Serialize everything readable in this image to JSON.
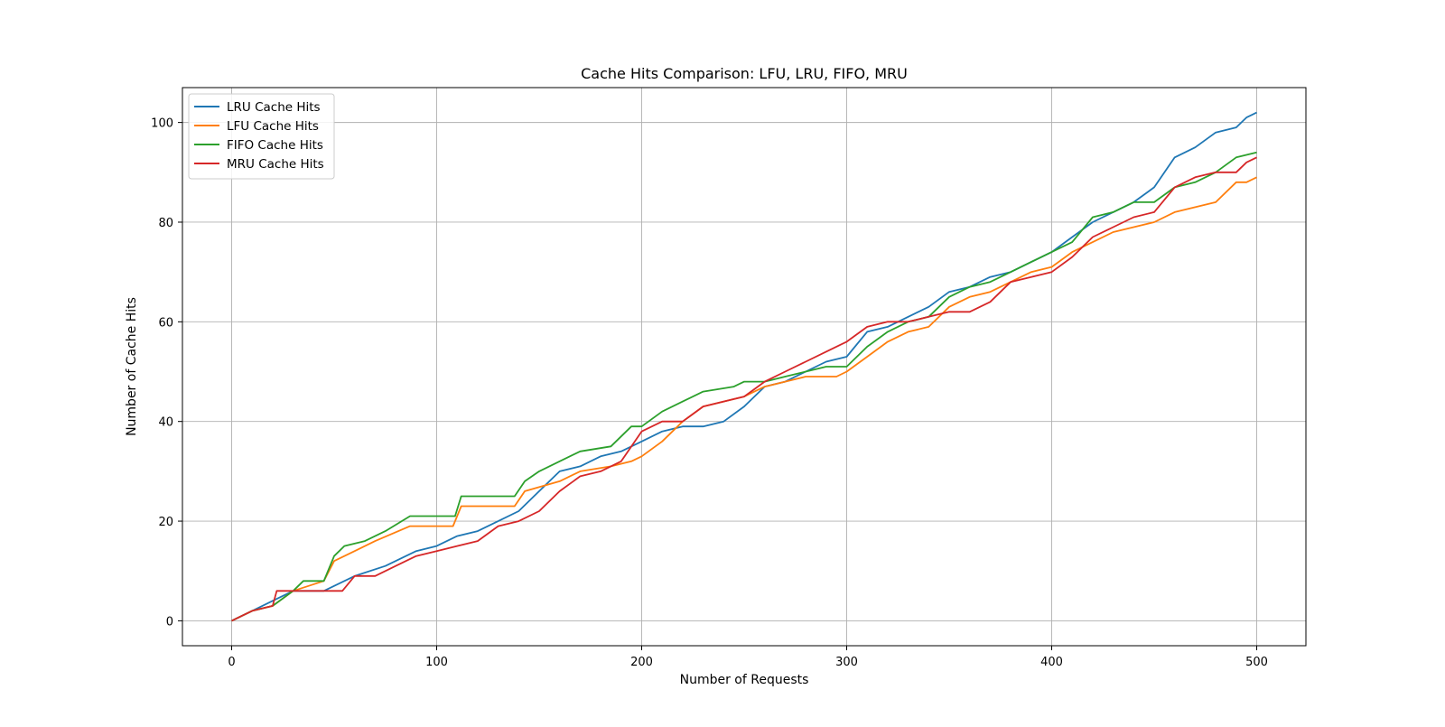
{
  "chart_data": {
    "type": "line",
    "title": "Cache Hits Comparison: LFU, LRU, FIFO, MRU",
    "xlabel": "Number of Requests",
    "ylabel": "Number of Cache Hits",
    "xlim": [
      -24,
      524
    ],
    "ylim": [
      -5,
      107
    ],
    "xticks": [
      0,
      100,
      200,
      300,
      400,
      500
    ],
    "yticks": [
      0,
      20,
      40,
      60,
      80,
      100
    ],
    "grid": true,
    "legend_position": "top-left",
    "series": [
      {
        "name": "LRU Cache Hits",
        "color": "#1f77b4",
        "x": [
          0,
          5,
          10,
          20,
          30,
          45,
          60,
          75,
          90,
          100,
          110,
          120,
          130,
          140,
          150,
          160,
          170,
          180,
          190,
          200,
          210,
          220,
          230,
          240,
          250,
          260,
          270,
          280,
          290,
          300,
          310,
          320,
          330,
          340,
          350,
          360,
          370,
          380,
          390,
          400,
          410,
          420,
          430,
          440,
          450,
          455,
          460,
          470,
          480,
          490,
          495,
          500
        ],
        "y": [
          0,
          1,
          2,
          4,
          6,
          6,
          9,
          11,
          14,
          15,
          17,
          18,
          20,
          22,
          26,
          30,
          31,
          33,
          34,
          36,
          38,
          39,
          39,
          40,
          43,
          47,
          48,
          50,
          52,
          53,
          58,
          59,
          61,
          63,
          66,
          67,
          69,
          70,
          72,
          74,
          77,
          80,
          82,
          84,
          87,
          90,
          93,
          95,
          98,
          99,
          101,
          102
        ]
      },
      {
        "name": "LFU Cache Hits",
        "color": "#ff7f0e",
        "x": [
          0,
          5,
          10,
          20,
          30,
          45,
          50,
          60,
          70,
          87,
          100,
          108,
          112,
          138,
          143,
          160,
          170,
          185,
          195,
          200,
          210,
          220,
          230,
          240,
          250,
          260,
          270,
          280,
          295,
          300,
          310,
          320,
          330,
          340,
          350,
          360,
          370,
          380,
          390,
          400,
          410,
          420,
          430,
          440,
          450,
          460,
          470,
          480,
          490,
          495,
          500
        ],
        "y": [
          0,
          1,
          2,
          3,
          6,
          8,
          12,
          14,
          16,
          19,
          19,
          19,
          23,
          23,
          26,
          28,
          30,
          31,
          32,
          33,
          36,
          40,
          43,
          44,
          45,
          47,
          48,
          49,
          49,
          50,
          53,
          56,
          58,
          59,
          63,
          65,
          66,
          68,
          70,
          71,
          74,
          76,
          78,
          79,
          80,
          82,
          83,
          84,
          88,
          88,
          89
        ]
      },
      {
        "name": "FIFO Cache Hits",
        "color": "#2ca02c",
        "x": [
          0,
          5,
          10,
          20,
          30,
          35,
          45,
          50,
          55,
          65,
          75,
          87,
          100,
          109,
          112,
          138,
          143,
          150,
          160,
          170,
          185,
          195,
          200,
          210,
          220,
          230,
          245,
          250,
          260,
          270,
          280,
          290,
          300,
          310,
          320,
          330,
          340,
          350,
          360,
          370,
          380,
          390,
          400,
          410,
          420,
          430,
          440,
          450,
          460,
          470,
          480,
          490,
          500
        ],
        "y": [
          0,
          1,
          2,
          3,
          6,
          8,
          8,
          13,
          15,
          16,
          18,
          21,
          21,
          21,
          25,
          25,
          28,
          30,
          32,
          34,
          35,
          39,
          39,
          42,
          44,
          46,
          47,
          48,
          48,
          49,
          50,
          51,
          51,
          55,
          58,
          60,
          61,
          65,
          67,
          68,
          70,
          72,
          74,
          76,
          81,
          82,
          84,
          84,
          87,
          88,
          90,
          93,
          94
        ]
      },
      {
        "name": "MRU Cache Hits",
        "color": "#d62728",
        "x": [
          0,
          5,
          10,
          20,
          22,
          30,
          40,
          54,
          60,
          70,
          80,
          90,
          100,
          110,
          120,
          130,
          140,
          150,
          160,
          170,
          180,
          190,
          200,
          210,
          220,
          230,
          240,
          250,
          260,
          270,
          280,
          290,
          300,
          310,
          320,
          330,
          340,
          350,
          360,
          370,
          380,
          390,
          400,
          410,
          420,
          430,
          440,
          450,
          460,
          470,
          480,
          490,
          495,
          500
        ],
        "y": [
          0,
          1,
          2,
          3,
          6,
          6,
          6,
          6,
          9,
          9,
          11,
          13,
          14,
          15,
          16,
          19,
          20,
          22,
          26,
          29,
          30,
          32,
          38,
          40,
          40,
          43,
          44,
          45,
          48,
          50,
          52,
          54,
          56,
          59,
          60,
          60,
          61,
          62,
          62,
          64,
          68,
          69,
          70,
          73,
          77,
          79,
          81,
          82,
          87,
          89,
          90,
          90,
          92,
          93
        ]
      }
    ]
  }
}
